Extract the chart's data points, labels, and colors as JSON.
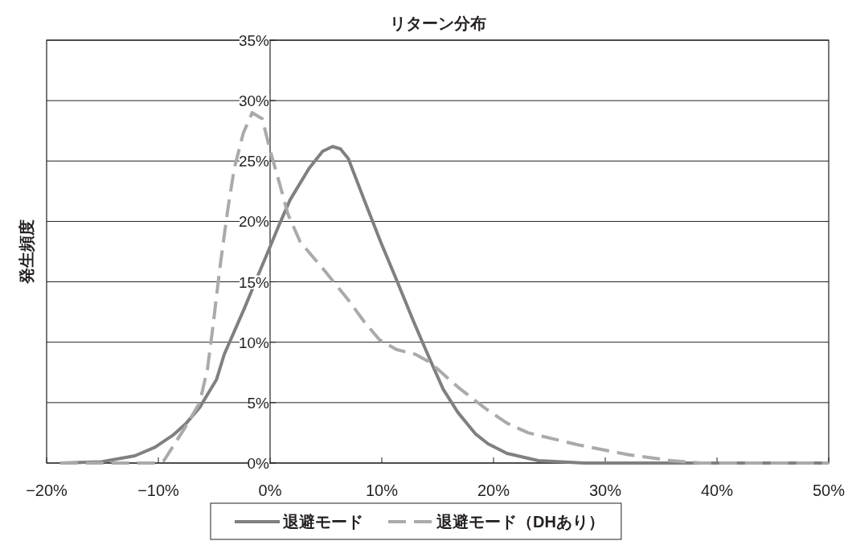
{
  "chart_data": {
    "type": "line",
    "title": "リターン分布",
    "ylabel": "発生頻度",
    "xlim": [
      -20,
      50
    ],
    "ylim": [
      0,
      35
    ],
    "xticks": [
      {
        "value": -20,
        "label": "−20%"
      },
      {
        "value": -10,
        "label": "−10%"
      },
      {
        "value": 0,
        "label": "0%"
      },
      {
        "value": 10,
        "label": "10%"
      },
      {
        "value": 20,
        "label": "20%"
      },
      {
        "value": 30,
        "label": "30%"
      },
      {
        "value": 40,
        "label": "40%"
      },
      {
        "value": 50,
        "label": "50%"
      }
    ],
    "yticks": [
      {
        "value": 0,
        "label": "0%"
      },
      {
        "value": 5,
        "label": "5%"
      },
      {
        "value": 10,
        "label": "10%"
      },
      {
        "value": 15,
        "label": "15%"
      },
      {
        "value": 20,
        "label": "20%"
      },
      {
        "value": 25,
        "label": "25%"
      },
      {
        "value": 30,
        "label": "30%"
      },
      {
        "value": 35,
        "label": "35%"
      }
    ],
    "grid": "y",
    "legend": "bottom",
    "series": [
      {
        "name": "退避モード",
        "color": "#808080",
        "line_style": "solid",
        "x": [
          -18.8,
          -15.1,
          -12.1,
          -10.3,
          -8.7,
          -7.5,
          -6.3,
          -4.8,
          -4.1,
          -2.3,
          -1.0,
          0,
          0.8,
          1.8,
          3.5,
          4.7,
          5.6,
          6.3,
          7.0,
          8.5,
          9.9,
          11.3,
          12.9,
          14.2,
          15.5,
          16.8,
          18.4,
          19.5,
          21.2,
          24.0,
          28.1,
          35,
          40,
          45,
          50
        ],
        "values": [
          0,
          0.1,
          0.6,
          1.3,
          2.3,
          3.3,
          4.6,
          6.9,
          9.0,
          12.8,
          15.7,
          17.9,
          19.7,
          21.8,
          24.4,
          25.8,
          26.2,
          26.0,
          25.2,
          21.6,
          18.3,
          15.2,
          11.6,
          8.8,
          6.1,
          4.2,
          2.4,
          1.6,
          0.8,
          0.2,
          0,
          0,
          0,
          0,
          0
        ]
      },
      {
        "name": "退避モード（DHあり）",
        "color": "#aaaaaa",
        "line_style": "dashed",
        "x": [
          -18.8,
          -13.1,
          -10.3,
          -9.5,
          -7.7,
          -6.3,
          -5.6,
          -5.1,
          -4.5,
          -3.8,
          -3.2,
          -2.4,
          -1.6,
          -0.7,
          0,
          0.8,
          1.6,
          2.7,
          4.9,
          7.0,
          8.5,
          9.8,
          11.3,
          13.0,
          14.2,
          14.6,
          16.8,
          19.3,
          21.2,
          23.1,
          27.6,
          32.0,
          35.9,
          38.6,
          45,
          50
        ],
        "values": [
          0,
          0,
          0,
          0.2,
          2.8,
          5.0,
          7.8,
          11.4,
          16.1,
          20.9,
          24.4,
          27.3,
          29.0,
          28.5,
          25.9,
          23.3,
          20.6,
          18.3,
          15.9,
          13.5,
          11.6,
          10.2,
          9.4,
          9.0,
          8.4,
          8.1,
          6.3,
          4.5,
          3.3,
          2.5,
          1.5,
          0.7,
          0.2,
          0,
          0,
          0
        ]
      }
    ]
  }
}
